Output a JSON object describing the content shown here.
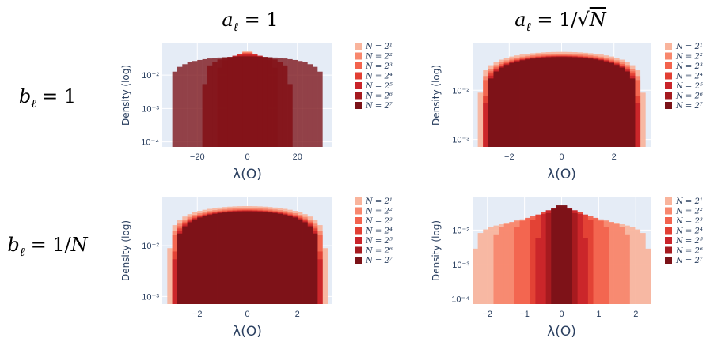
{
  "col_headers": [
    "a_ℓ = 1",
    "a_ℓ = 1/√N"
  ],
  "row_headers": [
    "b_ℓ = 1",
    "b_ℓ = 1/N"
  ],
  "legend": {
    "entries": [
      "N = 2^1",
      "N = 2^2",
      "N = 2^3",
      "N = 2^4",
      "N = 2^5",
      "N = 2^6",
      "N = 2^7"
    ],
    "colors": [
      "#f9b49c",
      "#f8876d",
      "#f3634e",
      "#e23f33",
      "#c9242a",
      "#a51a1f",
      "#7b1218"
    ]
  },
  "chart_data": [
    {
      "type": "histogram",
      "position": "row1-col1",
      "title": "a_ℓ = 1, b_ℓ = 1",
      "xlabel": "λ(O)",
      "ylabel": "Density (log)",
      "xlim": [
        -34,
        34
      ],
      "ylim_log10": [
        -4.15,
        -1.05
      ],
      "xticks": [
        -20,
        0,
        20
      ],
      "xtick_labels": [
        "−20",
        "0",
        "20"
      ],
      "yticks": [
        -4,
        -3,
        -2
      ],
      "ytick_labels": [
        "10⁻⁴",
        "10⁻³",
        "10⁻²"
      ],
      "series": [
        {
          "name": "N = 2^1",
          "radius": 3.6,
          "peak": 0.055
        },
        {
          "name": "N = 2^2",
          "radius": 4.5,
          "peak": 0.05
        },
        {
          "name": "N = 2^3",
          "radius": 6,
          "peak": 0.048
        },
        {
          "name": "N = 2^4",
          "radius": 8.5,
          "peak": 0.045
        },
        {
          "name": "N = 2^5",
          "radius": 12,
          "peak": 0.042
        },
        {
          "name": "N = 2^6",
          "radius": 17.5,
          "peak": 0.038
        },
        {
          "name": "N = 2^7",
          "radius": 31,
          "peak": 0.036
        }
      ]
    },
    {
      "type": "histogram",
      "position": "row1-col2",
      "title": "a_ℓ = 1/√N, b_ℓ = 1",
      "xlabel": "λ(O)",
      "ylabel": "Density (log)",
      "xlim": [
        -3.4,
        3.4
      ],
      "ylim_log10": [
        -3.15,
        -1.05
      ],
      "xticks": [
        -2,
        0,
        2
      ],
      "xtick_labels": [
        "−2",
        "0",
        "2"
      ],
      "yticks": [
        -3,
        -2
      ],
      "ytick_labels": [
        "10⁻³",
        "10⁻²"
      ],
      "series": [
        {
          "name": "N = 2^1",
          "radius": 3.2,
          "peak": 0.06
        },
        {
          "name": "N = 2^2",
          "radius": 3.1,
          "peak": 0.055
        },
        {
          "name": "N = 2^3",
          "radius": 3.05,
          "peak": 0.052
        },
        {
          "name": "N = 2^4",
          "radius": 3.0,
          "peak": 0.05
        },
        {
          "name": "N = 2^5",
          "radius": 2.95,
          "peak": 0.049
        },
        {
          "name": "N = 2^6",
          "radius": 2.9,
          "peak": 0.048
        },
        {
          "name": "N = 2^7",
          "radius": 2.9,
          "peak": 0.047
        }
      ]
    },
    {
      "type": "histogram",
      "position": "row2-col1",
      "title": "a_ℓ = 1, b_ℓ = 1/N",
      "xlabel": "λ(O)",
      "ylabel": "Density (log)",
      "xlim": [
        -3.4,
        3.4
      ],
      "ylim_log10": [
        -3.15,
        -1.05
      ],
      "xticks": [
        -2,
        0,
        2
      ],
      "xtick_labels": [
        "−2",
        "0",
        "2"
      ],
      "yticks": [
        -3,
        -2
      ],
      "ytick_labels": [
        "10⁻³",
        "10⁻²"
      ],
      "series": [
        {
          "name": "N = 2^1",
          "radius": 3.2,
          "peak": 0.06
        },
        {
          "name": "N = 2^2",
          "radius": 3.1,
          "peak": 0.055
        },
        {
          "name": "N = 2^3",
          "radius": 3.05,
          "peak": 0.052
        },
        {
          "name": "N = 2^4",
          "radius": 3.0,
          "peak": 0.05
        },
        {
          "name": "N = 2^5",
          "radius": 2.95,
          "peak": 0.049
        },
        {
          "name": "N = 2^6",
          "radius": 2.9,
          "peak": 0.048
        },
        {
          "name": "N = 2^7",
          "radius": 2.9,
          "peak": 0.047
        }
      ]
    },
    {
      "type": "histogram",
      "position": "row2-col2",
      "title": "a_ℓ = 1/√N, b_ℓ = 1/N",
      "xlabel": "λ(O)",
      "ylabel": "Density (log)",
      "xlim": [
        -2.4,
        2.4
      ],
      "ylim_log10": [
        -4.15,
        -1.05
      ],
      "xticks": [
        -2,
        -1,
        0,
        1,
        2
      ],
      "xtick_labels": [
        "−2",
        "−1",
        "0",
        "1",
        "2"
      ],
      "yticks": [
        -4,
        -3,
        -2
      ],
      "ytick_labels": [
        "10⁻⁴",
        "10⁻³",
        "10⁻²"
      ],
      "series": [
        {
          "name": "N = 2^1",
          "radius": 2.4,
          "peak": 0.02
        },
        {
          "name": "N = 2^2",
          "radius": 1.85,
          "peak": 0.025
        },
        {
          "name": "N = 2^3",
          "radius": 1.3,
          "peak": 0.032
        },
        {
          "name": "N = 2^4",
          "radius": 0.9,
          "peak": 0.04
        },
        {
          "name": "N = 2^5",
          "radius": 0.65,
          "peak": 0.045
        },
        {
          "name": "N = 2^6",
          "radius": 0.45,
          "peak": 0.05
        },
        {
          "name": "N = 2^7",
          "radius": 0.32,
          "peak": 0.055
        }
      ]
    }
  ]
}
